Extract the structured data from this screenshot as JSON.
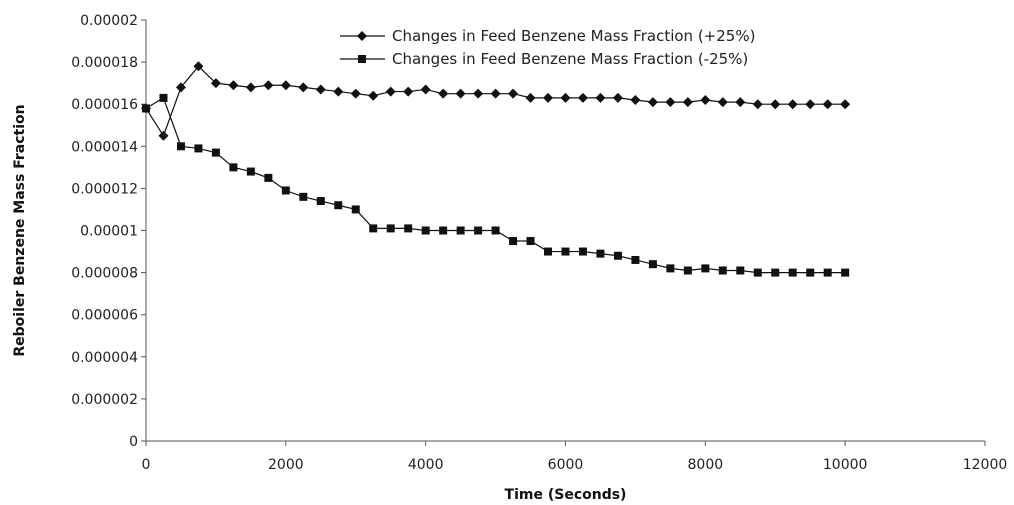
{
  "chart_data": {
    "type": "line",
    "title": "",
    "xlabel": "Time (Seconds)",
    "ylabel": "Reboiler Benzene Mass Fraction",
    "xlim": [
      0,
      12000
    ],
    "ylim": [
      0,
      2e-05
    ],
    "x_ticks": [
      0,
      2000,
      4000,
      6000,
      8000,
      10000,
      12000
    ],
    "x_tick_labels": [
      "0",
      "2000",
      "4000",
      "6000",
      "8000",
      "10000",
      "12000"
    ],
    "y_ticks": [
      0,
      2e-06,
      4e-06,
      6e-06,
      8e-06,
      1e-05,
      1.2e-05,
      1.4e-05,
      1.6e-05,
      1.8e-05,
      2e-05
    ],
    "y_tick_labels": [
      "0",
      "0.000002",
      "0.000004",
      "0.000006",
      "0.000008",
      "0.00001",
      "0.000012",
      "0.000014",
      "0.000016",
      "0.000018",
      "0.00002"
    ],
    "grid": false,
    "legend_position": "top-right",
    "x": [
      0,
      250,
      500,
      750,
      1000,
      1250,
      1500,
      1750,
      2000,
      2250,
      2500,
      2750,
      3000,
      3250,
      3500,
      3750,
      4000,
      4250,
      4500,
      4750,
      5000,
      5250,
      5500,
      5750,
      6000,
      6250,
      6500,
      6750,
      7000,
      7250,
      7500,
      7750,
      8000,
      8250,
      8500,
      8750,
      9000,
      9250,
      9500,
      9750,
      10000
    ],
    "series": [
      {
        "name": "Changes in Feed Benzene Mass Fraction (+25%)",
        "marker": "diamond",
        "color": "#111111",
        "values": [
          1.58e-05,
          1.45e-05,
          1.68e-05,
          1.78e-05,
          1.7e-05,
          1.69e-05,
          1.68e-05,
          1.69e-05,
          1.69e-05,
          1.68e-05,
          1.67e-05,
          1.66e-05,
          1.65e-05,
          1.64e-05,
          1.66e-05,
          1.66e-05,
          1.67e-05,
          1.65e-05,
          1.65e-05,
          1.65e-05,
          1.65e-05,
          1.65e-05,
          1.63e-05,
          1.63e-05,
          1.63e-05,
          1.63e-05,
          1.63e-05,
          1.63e-05,
          1.62e-05,
          1.61e-05,
          1.61e-05,
          1.61e-05,
          1.62e-05,
          1.61e-05,
          1.61e-05,
          1.6e-05,
          1.6e-05,
          1.6e-05,
          1.6e-05,
          1.6e-05,
          1.6e-05
        ]
      },
      {
        "name": "Changes in Feed Benzene Mass Fraction (-25%)",
        "marker": "square",
        "color": "#111111",
        "values": [
          1.58e-05,
          1.63e-05,
          1.4e-05,
          1.39e-05,
          1.37e-05,
          1.3e-05,
          1.28e-05,
          1.25e-05,
          1.19e-05,
          1.16e-05,
          1.14e-05,
          1.12e-05,
          1.1e-05,
          1.01e-05,
          1.01e-05,
          1.01e-05,
          1e-05,
          1e-05,
          1e-05,
          1e-05,
          1e-05,
          9.5e-06,
          9.5e-06,
          9e-06,
          9e-06,
          9e-06,
          8.9e-06,
          8.8e-06,
          8.6e-06,
          8.4e-06,
          8.2e-06,
          8.1e-06,
          8.2e-06,
          8.1e-06,
          8.1e-06,
          8e-06,
          8e-06,
          8e-06,
          8e-06,
          8e-06,
          8e-06
        ]
      }
    ]
  }
}
